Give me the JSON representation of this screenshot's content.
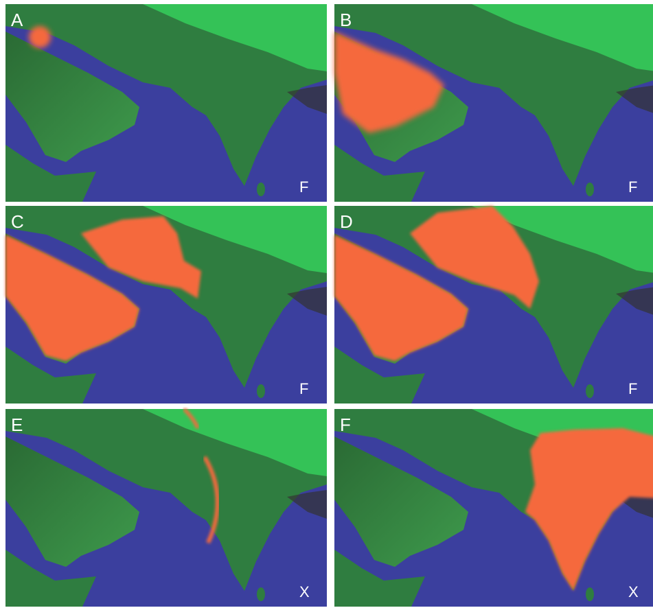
{
  "panels": [
    {
      "letter": "A",
      "corner": "F"
    },
    {
      "letter": "B",
      "corner": "F"
    },
    {
      "letter": "C",
      "corner": "F"
    },
    {
      "letter": "D",
      "corner": "F"
    },
    {
      "letter": "E",
      "corner": "X"
    },
    {
      "letter": "F",
      "corner": "X"
    }
  ]
}
